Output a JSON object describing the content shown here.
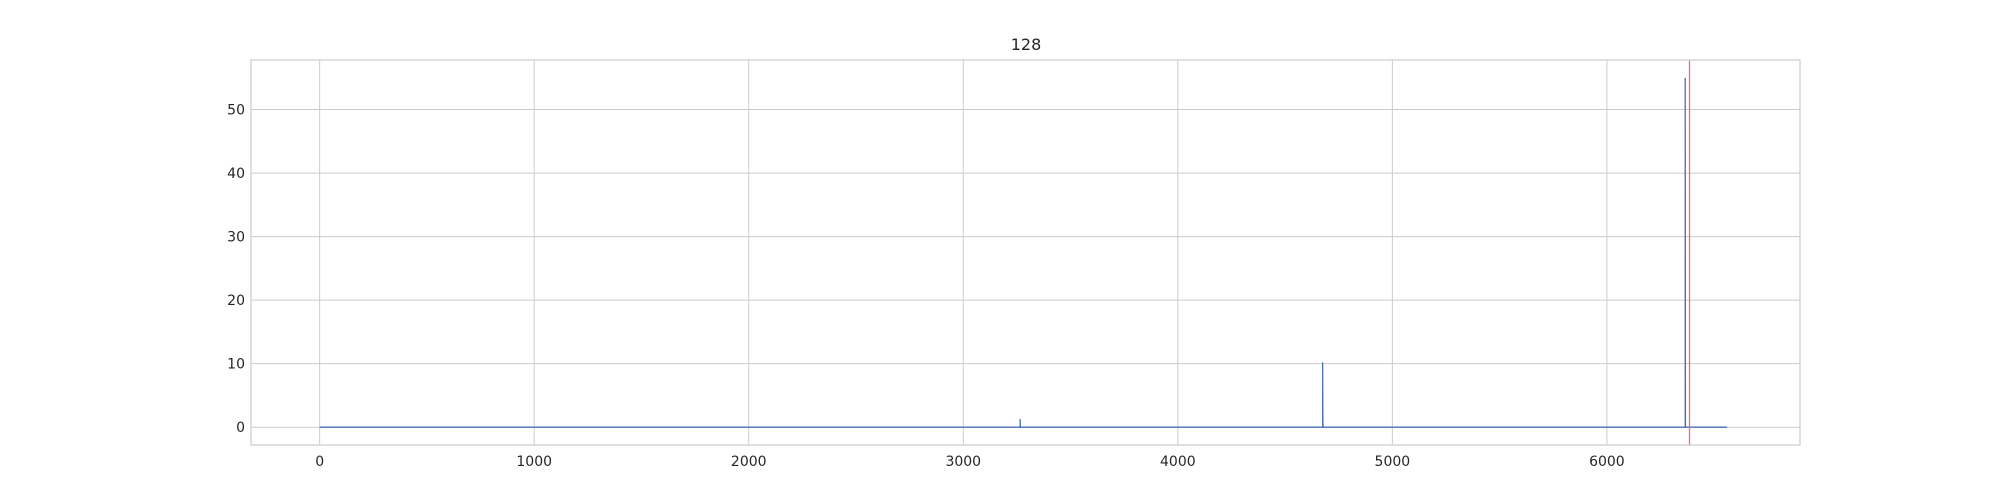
{
  "chart_data": {
    "type": "line",
    "title": "128",
    "xlabel": "",
    "ylabel": "",
    "xlim": [
      -320,
      6900
    ],
    "ylim": [
      -2.8,
      57.8
    ],
    "x_ticks": [
      0,
      1000,
      2000,
      3000,
      4000,
      5000,
      6000
    ],
    "y_ticks": [
      0,
      10,
      20,
      30,
      40,
      50
    ],
    "grid": true,
    "series": [
      {
        "color": "#4c72b0",
        "points": [
          [
            0,
            0
          ],
          [
            3265,
            0
          ],
          [
            3265,
            1.3
          ],
          [
            3266,
            0
          ],
          [
            4675,
            0
          ],
          [
            4675,
            10.2
          ],
          [
            4676,
            0.8
          ],
          [
            4677,
            0
          ],
          [
            6365,
            0
          ],
          [
            6365,
            55
          ],
          [
            6366,
            0
          ],
          [
            6560,
            0
          ]
        ]
      }
    ],
    "vertical_lines": [
      {
        "x": 6385,
        "color": "#e8716d"
      }
    ]
  }
}
